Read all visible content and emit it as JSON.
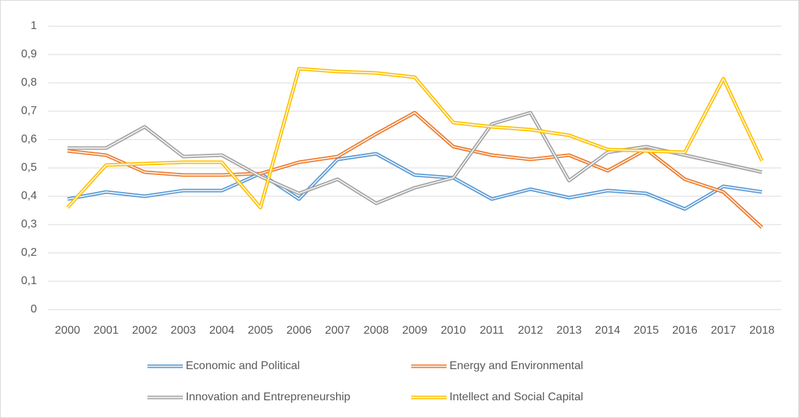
{
  "chart_data": {
    "type": "line",
    "categories": [
      "2000",
      "2001",
      "2002",
      "2003",
      "2004",
      "2005",
      "2006",
      "2007",
      "2008",
      "2009",
      "2010",
      "2011",
      "2012",
      "2013",
      "2014",
      "2015",
      "2016",
      "2017",
      "2018"
    ],
    "series": [
      {
        "name": "Economic and Political",
        "color": "#5b9bd5",
        "values": [
          0.39,
          0.415,
          0.4,
          0.42,
          0.42,
          0.48,
          0.39,
          0.53,
          0.55,
          0.475,
          0.465,
          0.39,
          0.425,
          0.395,
          0.42,
          0.41,
          0.355,
          0.435,
          0.415
        ]
      },
      {
        "name": "Energy and Environmental",
        "color": "#ed7d31",
        "values": [
          0.56,
          0.545,
          0.485,
          0.475,
          0.475,
          0.48,
          0.52,
          0.54,
          0.62,
          0.695,
          0.575,
          0.545,
          0.53,
          0.545,
          0.49,
          0.565,
          0.46,
          0.415,
          0.29
        ]
      },
      {
        "name": "Innovation and Entrepreneurship",
        "color": "#a5a5a5",
        "values": [
          0.57,
          0.57,
          0.645,
          0.54,
          0.545,
          0.47,
          0.41,
          0.46,
          0.375,
          0.43,
          0.465,
          0.655,
          0.695,
          0.455,
          0.555,
          0.575,
          0.545,
          0.515,
          0.485
        ]
      },
      {
        "name": "Intellect and Social Capital",
        "color": "#ffc000",
        "values": [
          0.36,
          0.51,
          0.515,
          0.52,
          0.52,
          0.36,
          0.85,
          0.84,
          0.835,
          0.82,
          0.66,
          0.645,
          0.635,
          0.615,
          0.565,
          0.56,
          0.555,
          0.815,
          0.525
        ]
      }
    ],
    "ylim": [
      0,
      1
    ],
    "yticks": [
      0,
      {
        "value": 0.1,
        "label": "0,1"
      },
      {
        "value": 0.2,
        "label": "0,2"
      },
      {
        "value": 0.3,
        "label": "0,3"
      },
      {
        "value": 0.4,
        "label": "0,4"
      },
      {
        "value": 0.5,
        "label": "0,5"
      },
      {
        "value": 0.6,
        "label": "0,6"
      },
      {
        "value": 0.7,
        "label": "0,7"
      },
      {
        "value": 0.8,
        "label": "0,8"
      },
      {
        "value": 0.9,
        "label": "0,9"
      },
      1
    ],
    "grid": true,
    "legend": "bottom"
  }
}
